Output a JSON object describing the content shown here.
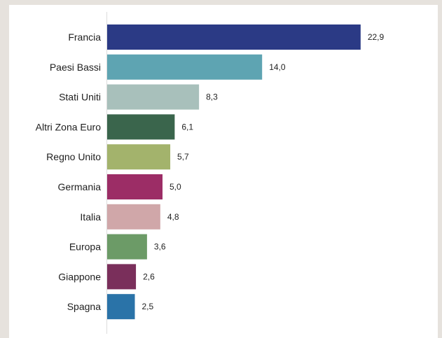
{
  "chart_data": {
    "type": "bar",
    "orientation": "horizontal",
    "categories": [
      "Francia",
      "Paesi Bassi",
      "Stati Uniti",
      "Altri Zona Euro",
      "Regno Unito",
      "Germania",
      "Italia",
      "Europa",
      "Giappone",
      "Spagna"
    ],
    "values": [
      22.9,
      14.0,
      8.3,
      6.1,
      5.7,
      5.0,
      4.8,
      3.6,
      2.6,
      2.5
    ],
    "value_labels": [
      "22,9",
      "14,0",
      "8,3",
      "6,1",
      "5,7",
      "5,0",
      "4,8",
      "3,6",
      "2,6",
      "2,5"
    ],
    "colors": [
      "#2b3a85",
      "#5ea4b2",
      "#a8c0bb",
      "#3a654c",
      "#a3b36c",
      "#9c2d66",
      "#d0a7a9",
      "#6c9b67",
      "#7a2f5b",
      "#2a73a8"
    ],
    "xlim": [
      0,
      25
    ],
    "grid": false,
    "legend": "none",
    "title": "",
    "xlabel": "",
    "ylabel": ""
  }
}
